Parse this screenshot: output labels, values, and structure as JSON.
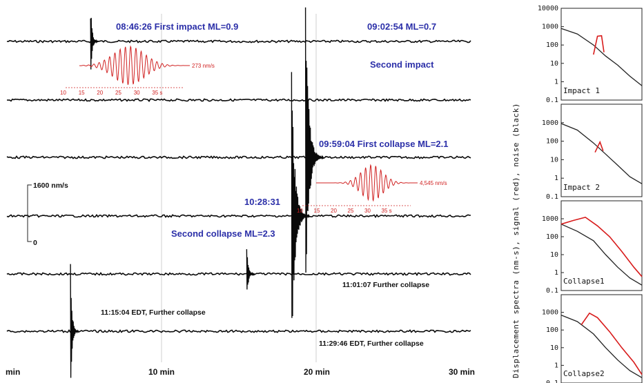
{
  "chart_data": [
    {
      "type": "line",
      "x_unit": "min",
      "xlim": [
        0,
        30
      ],
      "x_ticks": [
        {
          "value": 0,
          "label": "min"
        },
        {
          "value": 10,
          "label": "10 min"
        },
        {
          "value": 20,
          "label": "20 min"
        },
        {
          "value": 30,
          "label": "30 min"
        }
      ],
      "grid": "vertical lines at 10 and 20 min",
      "scale_bar": {
        "top_label": "1600 nm/s",
        "bottom_label": "0"
      },
      "traces": [
        {
          "start": "08:46:26",
          "events": [
            {
              "x": 5.5,
              "amp": 0.25
            }
          ],
          "labels": [
            {
              "text": "08:46:26 First impact ML=0.9"
            },
            {
              "text": "09:02:54 ML=0.7"
            }
          ]
        },
        {
          "events": [],
          "labels": [
            {
              "text": "Second impact"
            }
          ]
        },
        {
          "events": [
            {
              "x": 19.4,
              "amp": 1.0
            }
          ],
          "labels": [
            {
              "text": "09:59:04 First collapse ML=2.1"
            }
          ]
        },
        {
          "events": [
            {
              "x": 18.5,
              "amp": 1.0
            }
          ],
          "labels": [
            {
              "text": "10:28:31"
            },
            {
              "text": "Second collapse ML=2.3"
            }
          ]
        },
        {
          "events": [
            {
              "x": 15.6,
              "amp": 0.2
            }
          ],
          "labels": [
            {
              "text": "11:01:07 Further collapse"
            }
          ]
        },
        {
          "events": [
            {
              "x": 4.2,
              "amp": 0.45
            }
          ],
          "labels": [
            {
              "text": "11:15:04 EDT, Further collapse"
            },
            {
              "text": "11:29:46 EDT, Further collapse"
            }
          ]
        }
      ],
      "insets": [
        {
          "name": "impact",
          "peak_label": "273 nm/s",
          "time_ticks": [
            "10",
            "15",
            "20",
            "25",
            "30",
            "35 s"
          ]
        },
        {
          "name": "collapse",
          "peak_label": "4,545 nm/s",
          "time_ticks": [
            "10",
            "15",
            "20",
            "25",
            "30",
            "35 s"
          ]
        }
      ]
    },
    {
      "type": "line",
      "ylabel": "Displacement spectra (nm-s), signal (red), noise (black)",
      "y_scale": "log",
      "ylim": [
        0.1,
        10000
      ],
      "y_ticks": [
        "10000",
        "1000",
        "100",
        "10",
        "1",
        "0.1"
      ],
      "panels": [
        {
          "name": "Impact 1",
          "noise": [
            [
              0,
              800
            ],
            [
              0.2,
              400
            ],
            [
              0.4,
              100
            ],
            [
              0.55,
              25
            ],
            [
              0.7,
              8
            ],
            [
              0.85,
              2
            ],
            [
              1,
              0.6
            ]
          ],
          "signal": [
            [
              0.4,
              30
            ],
            [
              0.45,
              300
            ],
            [
              0.5,
              320
            ],
            [
              0.53,
              40
            ]
          ]
        },
        {
          "name": "Impact 2",
          "noise": [
            [
              0,
              900
            ],
            [
              0.2,
              400
            ],
            [
              0.4,
              80
            ],
            [
              0.55,
              20
            ],
            [
              0.7,
              5
            ],
            [
              0.85,
              1.2
            ],
            [
              1,
              0.5
            ]
          ],
          "signal": [
            [
              0.42,
              25
            ],
            [
              0.48,
              90
            ],
            [
              0.52,
              30
            ]
          ]
        },
        {
          "name": "Collapse1",
          "noise": [
            [
              0,
              500
            ],
            [
              0.2,
              200
            ],
            [
              0.4,
              60
            ],
            [
              0.55,
              10
            ],
            [
              0.7,
              2
            ],
            [
              0.85,
              0.5
            ],
            [
              1,
              0.2
            ]
          ],
          "signal": [
            [
              0,
              500
            ],
            [
              0.15,
              800
            ],
            [
              0.3,
              1200
            ],
            [
              0.45,
              400
            ],
            [
              0.6,
              100
            ],
            [
              0.75,
              15
            ],
            [
              0.9,
              2
            ],
            [
              1,
              0.6
            ]
          ]
        },
        {
          "name": "Collapse2",
          "noise": [
            [
              0,
              700
            ],
            [
              0.2,
              300
            ],
            [
              0.4,
              60
            ],
            [
              0.55,
              10
            ],
            [
              0.7,
              2
            ],
            [
              0.85,
              0.5
            ],
            [
              1,
              0.2
            ]
          ],
          "signal": [
            [
              0.25,
              200
            ],
            [
              0.35,
              900
            ],
            [
              0.45,
              500
            ],
            [
              0.6,
              80
            ],
            [
              0.75,
              10
            ],
            [
              0.9,
              1.5
            ],
            [
              1,
              0.3
            ]
          ]
        }
      ]
    }
  ]
}
